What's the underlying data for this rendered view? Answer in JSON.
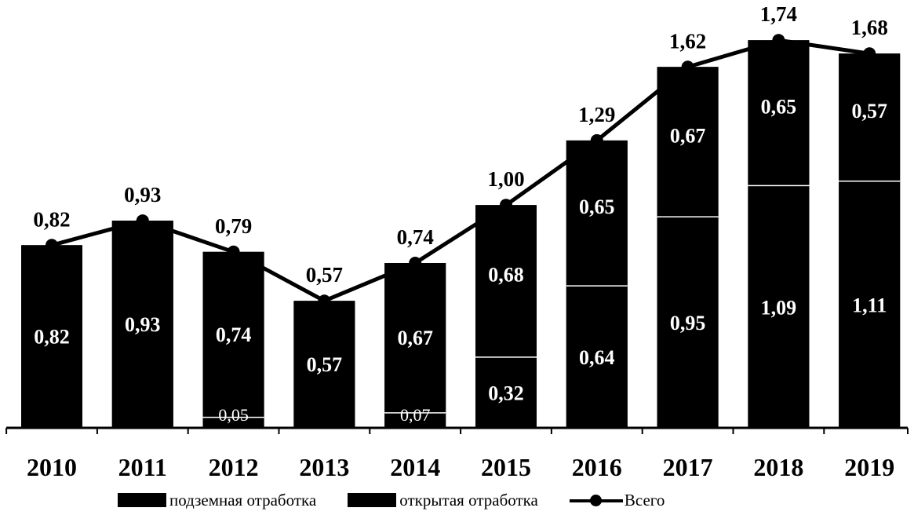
{
  "chart_data": {
    "type": "bar",
    "stacked": true,
    "title": "",
    "xlabel": "",
    "ylabel": "",
    "categories": [
      "2010",
      "2011",
      "2012",
      "2013",
      "2014",
      "2015",
      "2016",
      "2017",
      "2018",
      "2019"
    ],
    "series": [
      {
        "name": "подземная отработка",
        "kind": "bar",
        "values": [
          0,
          0,
          0.05,
          0,
          0.07,
          0.32,
          0.64,
          0.95,
          1.09,
          1.11
        ],
        "labels": [
          "",
          "",
          "0,05",
          "",
          "0,07",
          "0,32",
          "0,64",
          "0,95",
          "1,09",
          "1,11"
        ]
      },
      {
        "name": "открытая отработка",
        "kind": "bar",
        "values": [
          0.82,
          0.93,
          0.74,
          0.57,
          0.67,
          0.68,
          0.65,
          0.67,
          0.65,
          0.57
        ],
        "labels": [
          "0,82",
          "0,93",
          "0,74",
          "0,57",
          "0,67",
          "0,68",
          "0,65",
          "0,67",
          "0,65",
          "0,57"
        ]
      },
      {
        "name": "Всего",
        "kind": "line",
        "values": [
          0.82,
          0.93,
          0.79,
          0.57,
          0.74,
          1.0,
          1.29,
          1.62,
          1.74,
          1.68
        ],
        "labels": [
          "0,82",
          "0,93",
          "0,79",
          "0,57",
          "0,74",
          "1,00",
          "1,29",
          "1,62",
          "1,74",
          "1,68"
        ]
      }
    ],
    "ylim": [
      0,
      1.85
    ],
    "grid": false,
    "legend_position": "bottom",
    "colors": {
      "bars": "#000000",
      "line": "#000000",
      "separator": "#ffffff",
      "background": "#ffffff"
    }
  }
}
